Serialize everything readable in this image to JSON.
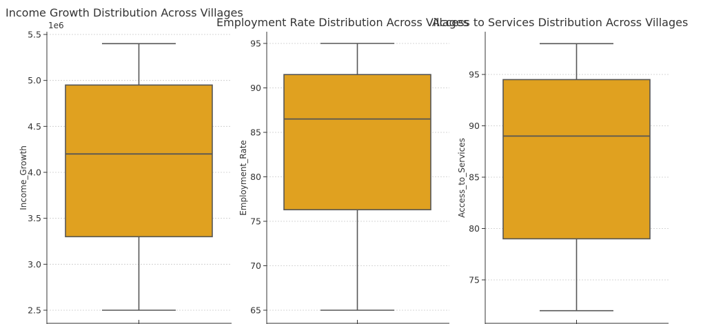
{
  "figure_colors": {
    "box_fill": "#E0A120",
    "line": "#555555",
    "grid": "#C8C8C8",
    "axis": "#333333",
    "text": "#333333"
  },
  "chart_data": [
    {
      "type": "box",
      "title": "Income Growth Distribution Across Villages",
      "xlabel": "",
      "ylabel": "Income_Growth",
      "offset_label": "1e6",
      "ylim": [
        2.5,
        5.5
      ],
      "yticks": [
        2.5,
        3.0,
        3.5,
        4.0,
        4.5,
        5.0,
        5.5
      ],
      "ytick_labels": [
        "2.5",
        "3.0",
        "3.5",
        "4.0",
        "4.5",
        "5.0",
        "5.5"
      ],
      "grid": true,
      "box": {
        "min": 2.5,
        "q1": 3.3,
        "median": 4.2,
        "q3": 4.95,
        "max": 5.4
      }
    },
    {
      "type": "box",
      "title": "Employment Rate Distribution Across Villages",
      "xlabel": "",
      "ylabel": "Employment_Rate",
      "ylim": [
        65,
        95
      ],
      "yticks": [
        65,
        70,
        75,
        80,
        85,
        90,
        95
      ],
      "ytick_labels": [
        "65",
        "70",
        "75",
        "80",
        "85",
        "90",
        "95"
      ],
      "grid": true,
      "box": {
        "min": 65,
        "q1": 76.3,
        "median": 86.5,
        "q3": 91.5,
        "max": 95
      }
    },
    {
      "type": "box",
      "title": "Access to Services Distribution Across Villages",
      "xlabel": "",
      "ylabel": "Access_to_Services",
      "ylim": [
        75,
        95
      ],
      "yticks": [
        75,
        80,
        85,
        90,
        95
      ],
      "ytick_labels": [
        "75",
        "80",
        "85",
        "90",
        "95"
      ],
      "grid": true,
      "box": {
        "min": 72,
        "q1": 79,
        "median": 89,
        "q3": 94.5,
        "max": 98
      }
    }
  ]
}
